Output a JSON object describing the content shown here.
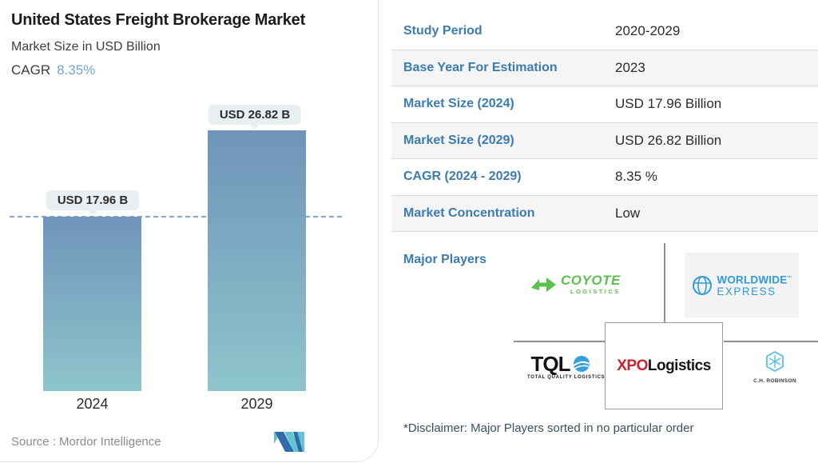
{
  "header": {
    "title": "United States Freight Brokerage Market",
    "subtitle": "Market Size in USD Billion",
    "cagr_label": "CAGR",
    "cagr_value": "8.35%"
  },
  "chart_data": {
    "type": "bar",
    "categories": [
      "2024",
      "2029"
    ],
    "values": [
      17.96,
      26.82
    ],
    "unit": "USD Billion",
    "bar_labels": [
      "USD 17.96 B",
      "USD 26.82 B"
    ],
    "baseline_value": 17.96,
    "title": "United States Freight Brokerage Market",
    "ylabel": "Market Size in USD Billion",
    "ylim": [
      0,
      30
    ],
    "grid": false,
    "bar_gradient": [
      "#6f94b9",
      "#8ec5cc"
    ],
    "dashed_line_color": "#7fa8ce"
  },
  "source": {
    "text": "Source :  Mordor Intelligence"
  },
  "table": {
    "rows": [
      {
        "label": "Study Period",
        "value": "2020-2029"
      },
      {
        "label": "Base Year For Estimation",
        "value": "2023"
      },
      {
        "label": "Market Size (2024)",
        "value": "USD 17.96 Billion"
      },
      {
        "label": "Market Size (2029)",
        "value": "USD 26.82 Billion"
      },
      {
        "label": "CAGR (2024 - 2029)",
        "value": "8.35 %"
      },
      {
        "label": "Market Concentration",
        "value": "Low"
      }
    ]
  },
  "major_players": {
    "label": "Major Players",
    "disclaimer": "*Disclaimer: Major Players sorted in no particular order",
    "players": [
      "Coyote Logistics",
      "Worldwide Express",
      "Total Quality Logistics",
      "XPO Logistics",
      "C.H. Robinson"
    ]
  },
  "logos": {
    "coyote": {
      "name": "COYOTE",
      "sub": "LOGISTICS"
    },
    "worldwide_express": {
      "line1": "WORLDWIDE",
      "tm": "™",
      "line2": "EXPRESS"
    },
    "tql": {
      "name": "TQL",
      "sub": "TOTAL QUALITY LOGISTICS"
    },
    "xpo": {
      "part1": "XPO",
      "part2": "Logistics"
    },
    "ch_robinson": {
      "name": "C.H. ROBINSON"
    }
  },
  "colors": {
    "label_blue": "#3b7cb0",
    "value_dark": "#2b2b2b",
    "cagr_blue": "#74a5cd",
    "coyote_green": "#5cbf4e",
    "wwex_blue": "#2f9bd8",
    "xpo_red": "#c8232c",
    "row_alt_bg": "#f5f5f6",
    "connector_gray": "#8f8f8f"
  }
}
